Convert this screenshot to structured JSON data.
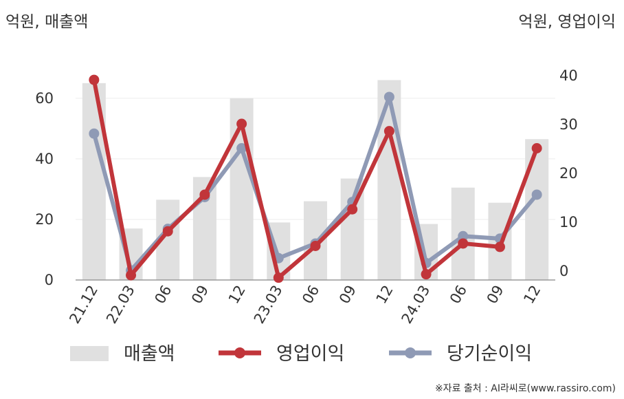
{
  "chart_data": {
    "type": "bar+line",
    "left_axis_label": "억원, 매출액",
    "right_axis_label": "억원, 영업이익",
    "categories": [
      "21.12",
      "22.03",
      "06",
      "09",
      "12",
      "23.03",
      "06",
      "09",
      "12",
      "24.03",
      "06",
      "09",
      "12"
    ],
    "left_axis": {
      "ylim": [
        0,
        72
      ],
      "ticks": [
        "0",
        "20",
        "40",
        "60"
      ],
      "tick_values": [
        0,
        20,
        40,
        60
      ]
    },
    "right_axis": {
      "ylim": [
        -2,
        42
      ],
      "ticks": [
        "0",
        "10",
        "20",
        "30",
        "40"
      ],
      "tick_values": [
        0,
        10,
        20,
        30,
        40
      ]
    },
    "grid": true,
    "series": [
      {
        "name": "매출액",
        "kind": "bar",
        "axis": "left",
        "color": "#e0e0e0",
        "values": [
          65,
          17,
          26.5,
          34,
          60,
          19,
          26,
          33.5,
          66,
          18.5,
          30.5,
          25.5,
          46.5
        ]
      },
      {
        "name": "영업이익",
        "kind": "line",
        "axis": "right",
        "color": "#c1353a",
        "values": [
          39,
          -1,
          8,
          15.5,
          30,
          -1.5,
          5,
          12.5,
          28.5,
          -0.8,
          5.5,
          4.8,
          25
        ]
      },
      {
        "name": "당기순이익",
        "kind": "line",
        "axis": "right",
        "color": "#8f9ab5",
        "values": [
          28,
          0,
          8.5,
          15,
          25,
          2.5,
          5.5,
          14,
          35.5,
          1.5,
          7,
          6.5,
          15.5
        ]
      }
    ],
    "legend": {
      "placement": "bottom"
    }
  },
  "source": "※자료 출처 : AI라씨로(www.rassiro.com)"
}
